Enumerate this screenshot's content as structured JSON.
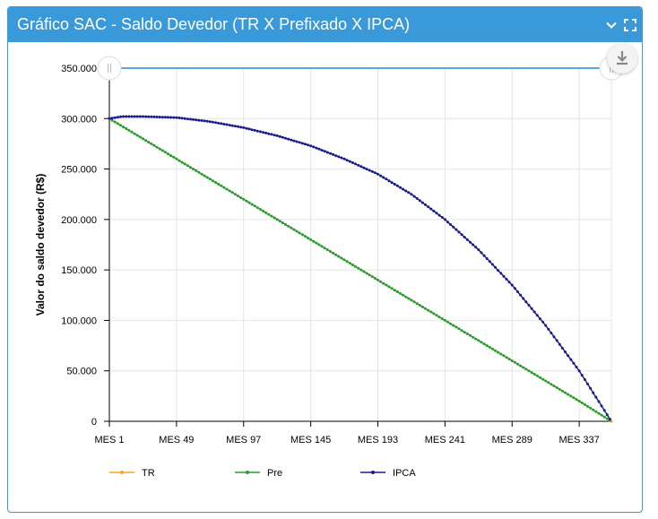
{
  "header": {
    "title": "Gráfico SAC - Saldo Devedor (TR X Prefixado X IPCA)",
    "collapse_icon": "chevron-down-icon",
    "expand_icon": "fullscreen-icon",
    "download_icon": "download-icon"
  },
  "colors": {
    "header_bg": "#3a9ad9",
    "tr": "#f5a623",
    "pre": "#2e9b2e",
    "ipca": "#1a1a8c",
    "scrollbar": "#5aa8e0"
  },
  "chart_data": {
    "type": "line",
    "ylabel": "Valor do saldo devedor (R$)",
    "xlabel": "",
    "ylim": [
      0,
      350000
    ],
    "y_ticks": [
      "0",
      "50.000",
      "100.000",
      "150.000",
      "200.000",
      "250.000",
      "300.000",
      "350.000"
    ],
    "y_tick_values": [
      0,
      50000,
      100000,
      150000,
      200000,
      250000,
      300000,
      350000
    ],
    "x_range": [
      1,
      360
    ],
    "x_ticks": [
      "MES 1",
      "MES 49",
      "MES 97",
      "MES 145",
      "MES 193",
      "MES 241",
      "MES 289",
      "MES 337"
    ],
    "x_tick_values": [
      1,
      49,
      97,
      145,
      193,
      241,
      289,
      337
    ],
    "grid": true,
    "legend_position": "bottom-left",
    "series": [
      {
        "name": "TR",
        "x": [
          1,
          360
        ],
        "values": [
          300000,
          0
        ]
      },
      {
        "name": "Pre",
        "x": [
          1,
          25,
          49,
          73,
          97,
          121,
          145,
          169,
          193,
          217,
          241,
          265,
          289,
          313,
          337,
          360
        ],
        "values": [
          300000,
          280000,
          260000,
          240000,
          220000,
          200000,
          180000,
          160000,
          140000,
          120000,
          100000,
          80000,
          60000,
          40000,
          20000,
          0
        ]
      },
      {
        "name": "IPCA",
        "x": [
          1,
          10,
          25,
          49,
          73,
          97,
          121,
          145,
          169,
          193,
          217,
          241,
          265,
          289,
          313,
          337,
          360
        ],
        "values": [
          300000,
          302000,
          302000,
          301000,
          297000,
          291000,
          283000,
          273000,
          260000,
          245000,
          225000,
          200000,
          170000,
          135000,
          95000,
          50000,
          0
        ]
      }
    ]
  }
}
